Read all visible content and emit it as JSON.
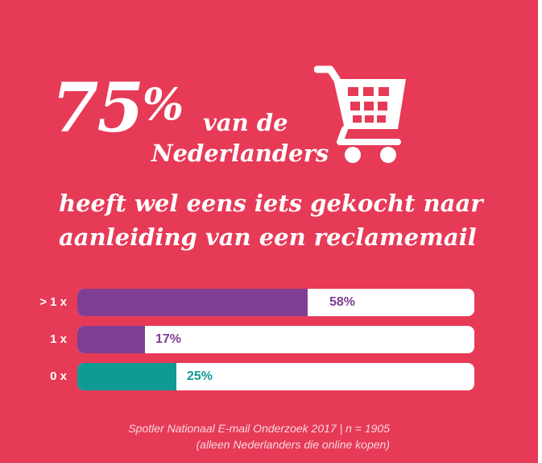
{
  "headline": {
    "percent": "75",
    "percent_sign": "%",
    "van_de": "van de",
    "nederlanders": "Nederlanders",
    "line1": "heeft wel eens iets gekocht naar",
    "line2": "aanleiding van een reclamemail"
  },
  "icon": "shopping-cart-icon",
  "colors": {
    "background": "#e63a57",
    "purple": "#7e3f93",
    "teal": "#0f9a93",
    "track": "#ffffff"
  },
  "chart_data": {
    "type": "bar",
    "orientation": "horizontal",
    "categories": [
      "> 1 x",
      "1 x",
      "0 x"
    ],
    "values": [
      58,
      17,
      25
    ],
    "value_labels": [
      "58%",
      "17%",
      "25%"
    ],
    "xlim": [
      0,
      100
    ],
    "bar_colors": [
      "#7e3f93",
      "#7e3f93",
      "#0f9a93"
    ],
    "label_colors": [
      "#7e3f93",
      "#7e3f93",
      "#0f9a93"
    ]
  },
  "source": {
    "line1": "Spotler Nationaal E-mail Onderzoek 2017 | n = 1905",
    "line2": "(alleen Nederlanders die online kopen)"
  }
}
